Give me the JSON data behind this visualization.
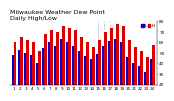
{
  "title": "Milwaukee Weather Dew Point",
  "subtitle": "Daily High/Low",
  "high_values": [
    60,
    65,
    62,
    60,
    52,
    68,
    72,
    70,
    76,
    74,
    72,
    65,
    60,
    56,
    62,
    70,
    74,
    78,
    76,
    62,
    56,
    52,
    46,
    58
  ],
  "low_values": [
    48,
    53,
    50,
    48,
    40,
    55,
    60,
    57,
    63,
    60,
    57,
    52,
    47,
    44,
    49,
    57,
    61,
    63,
    60,
    46,
    40,
    38,
    32,
    44
  ],
  "xlabels": [
    "1",
    "2",
    "3",
    "4",
    "5",
    "6",
    "7",
    "8",
    "9",
    "10",
    "11",
    "12",
    "13",
    "14",
    "15",
    "16",
    "17",
    "18",
    "19",
    "20",
    "21",
    "22",
    "23",
    "24"
  ],
  "bar_width": 0.38,
  "high_color": "#dd0000",
  "low_color": "#0000cc",
  "bg_color": "#ffffff",
  "ylim": [
    20,
    80
  ],
  "yticks": [
    20,
    30,
    40,
    50,
    60,
    70,
    80
  ],
  "title_fontsize": 4.5,
  "tick_fontsize": 3.0,
  "legend_fontsize": 3.0,
  "dashed_indices": [
    14,
    15,
    16,
    17
  ]
}
